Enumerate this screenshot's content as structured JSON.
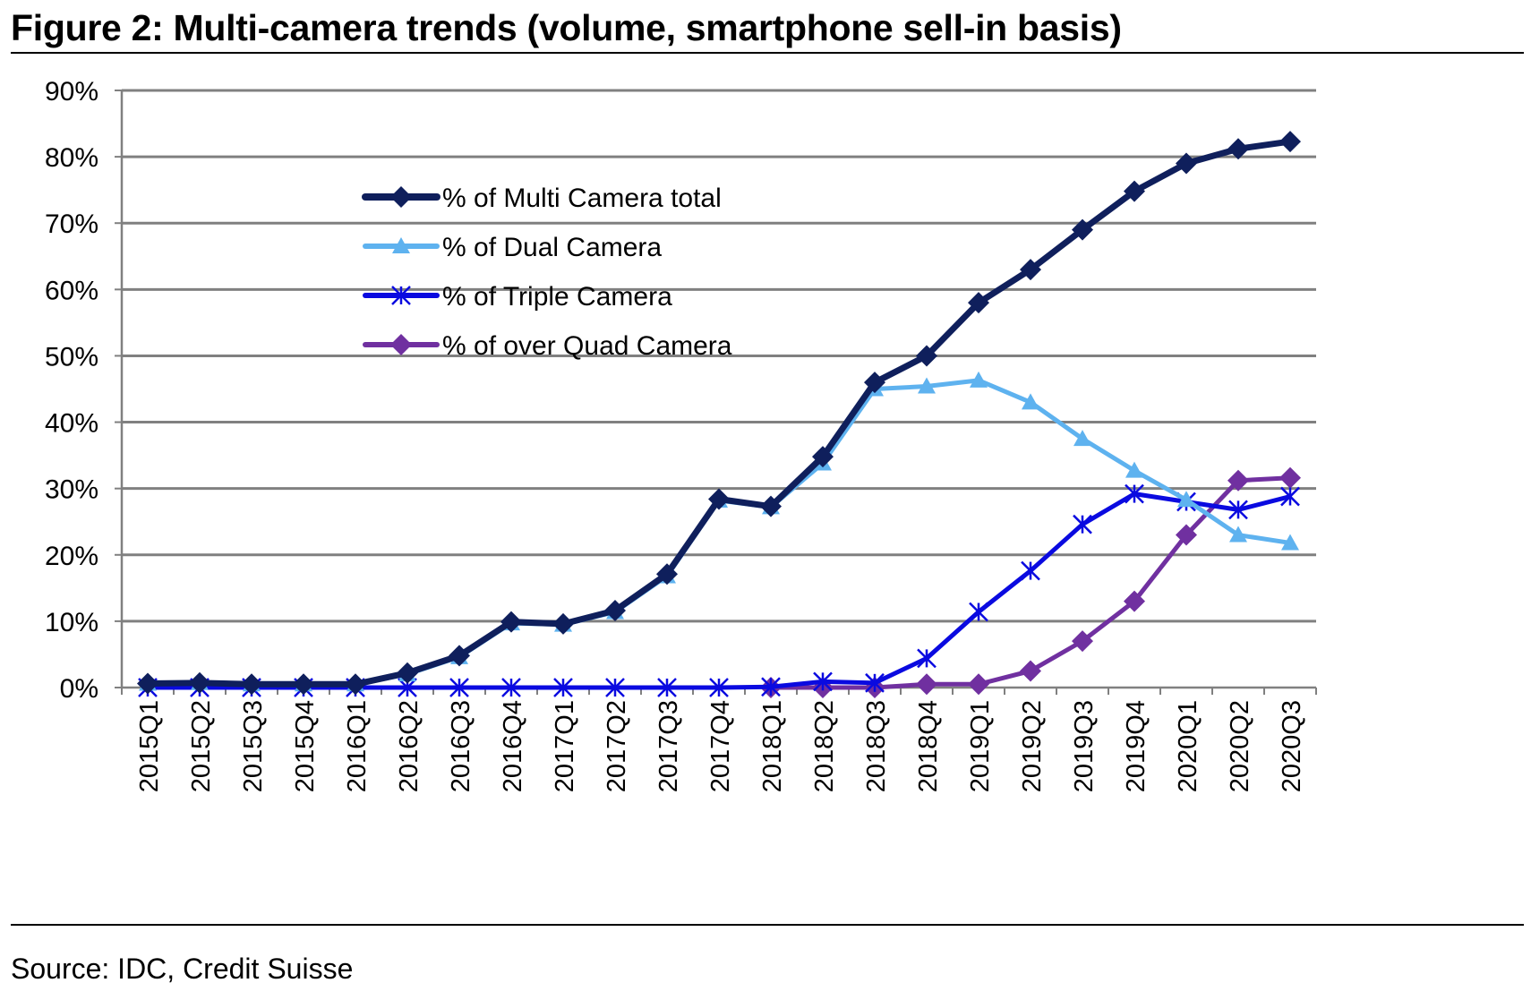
{
  "header": {
    "title": "Figure 2: Multi-camera trends (volume, smartphone sell-in basis)"
  },
  "footer": {
    "source": "Source: IDC, Credit Suisse"
  },
  "chart_data": {
    "type": "line",
    "title": "Figure 2: Multi-camera trends (volume, smartphone sell-in basis)",
    "xlabel": "",
    "ylabel": "",
    "ylim": [
      0,
      90
    ],
    "yticks": [
      "0%",
      "10%",
      "20%",
      "30%",
      "40%",
      "50%",
      "60%",
      "70%",
      "80%",
      "90%"
    ],
    "categories": [
      "2015Q1",
      "2015Q2",
      "2015Q3",
      "2015Q4",
      "2016Q1",
      "2016Q2",
      "2016Q3",
      "2016Q4",
      "2017Q1",
      "2017Q2",
      "2017Q3",
      "2017Q4",
      "2018Q1",
      "2018Q2",
      "2018Q3",
      "2018Q4",
      "2019Q1",
      "2019Q2",
      "2019Q3",
      "2019Q4",
      "2020Q1",
      "2020Q2",
      "2020Q3"
    ],
    "grid": true,
    "legend_position": "upper-left inside plot",
    "series": [
      {
        "name": "% of Multi Camera total",
        "color": "#0f1f5c",
        "marker": "diamond",
        "values": [
          0.6,
          0.7,
          0.5,
          0.5,
          0.5,
          2.2,
          4.8,
          9.9,
          9.6,
          11.6,
          17.1,
          28.4,
          27.3,
          34.8,
          46.0,
          50.0,
          58.0,
          63.0,
          69.0,
          74.8,
          79.0,
          81.2,
          82.3
        ]
      },
      {
        "name": "% of Dual Camera",
        "color": "#5eb2ef",
        "marker": "triangle",
        "values": [
          0.6,
          0.7,
          0.5,
          0.5,
          0.5,
          2.0,
          4.6,
          9.7,
          9.5,
          11.4,
          16.8,
          28.2,
          27.2,
          33.8,
          45.0,
          45.4,
          46.3,
          43.0,
          37.5,
          32.7,
          28.3,
          23.0,
          21.8
        ]
      },
      {
        "name": "% of Triple Camera",
        "color": "#0a0ae0",
        "marker": "star",
        "values": [
          0,
          0,
          0,
          0,
          0,
          0,
          0,
          0,
          0,
          0,
          0,
          0,
          0.1,
          0.9,
          0.7,
          4.4,
          11.4,
          17.6,
          24.6,
          29.2,
          28.0,
          26.8,
          28.8
        ]
      },
      {
        "name": "% of over Quad Camera",
        "color": "#7030a0",
        "marker": "diamond",
        "values": [
          null,
          null,
          null,
          null,
          null,
          null,
          null,
          null,
          null,
          null,
          null,
          null,
          0,
          0,
          0,
          0.5,
          0.5,
          2.5,
          7.0,
          13.0,
          23.0,
          31.2,
          31.6
        ]
      }
    ]
  }
}
